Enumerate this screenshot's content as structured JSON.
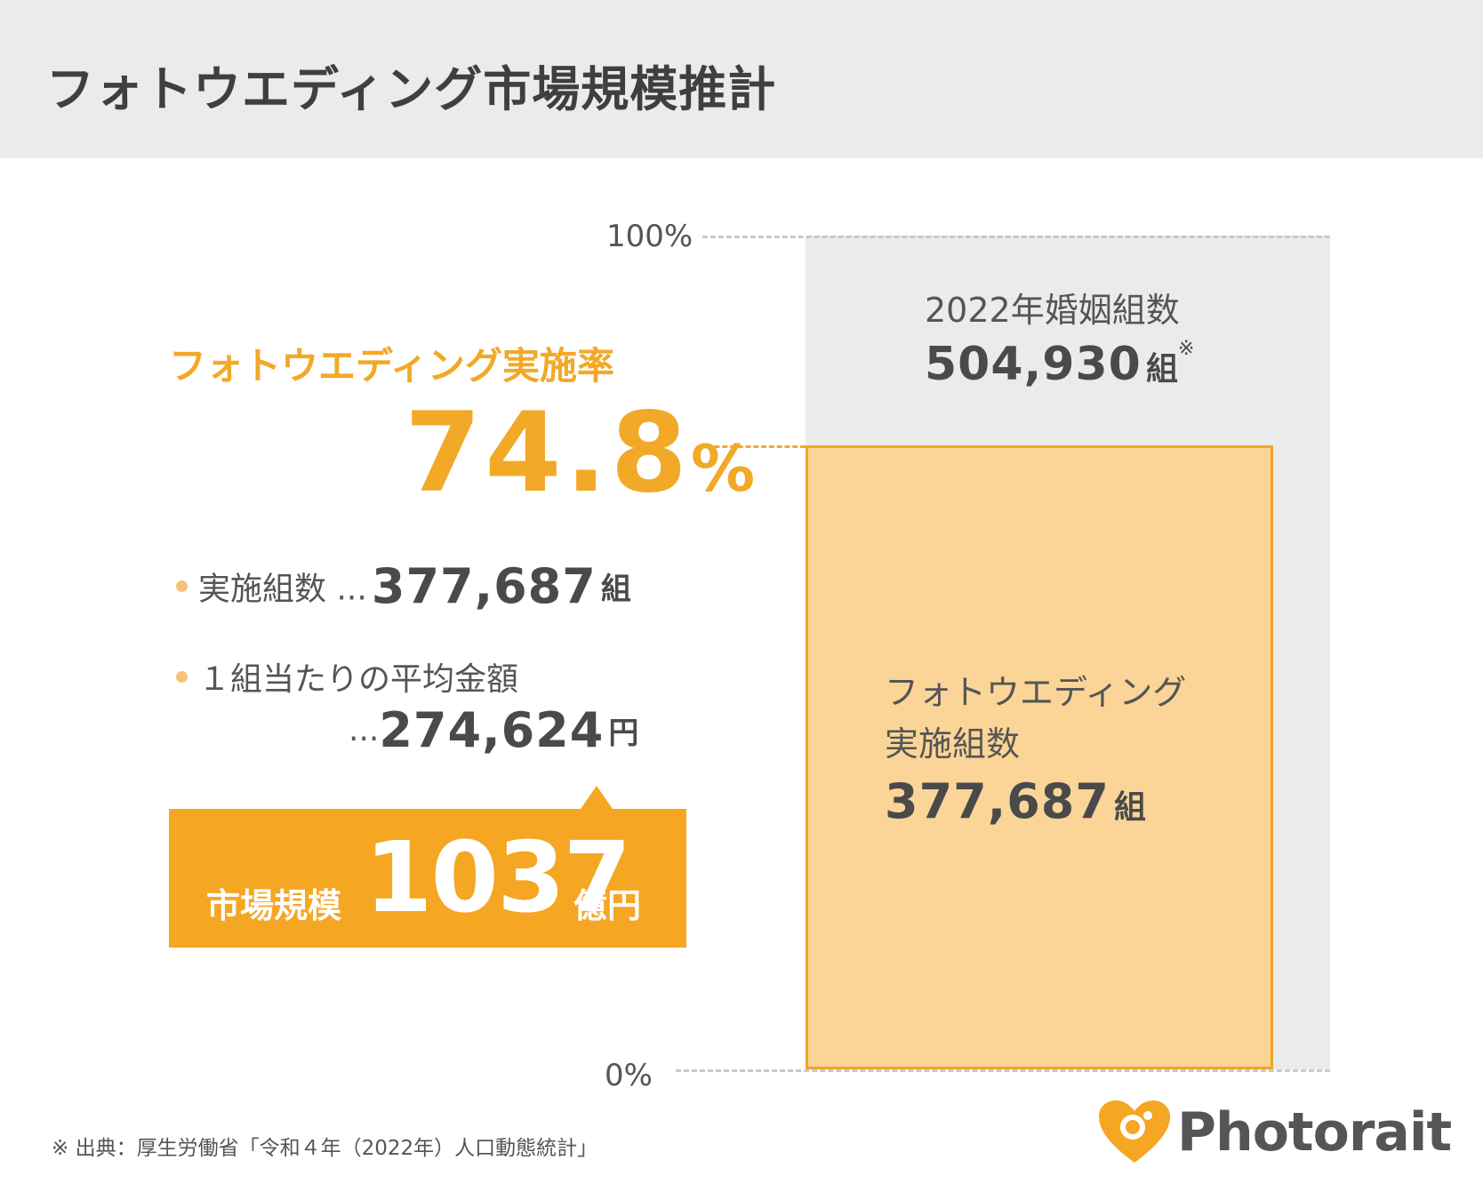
{
  "title": "フォトウエディング市場規模推計",
  "rate": {
    "label": "フォトウエディング実施率",
    "value": "74.8",
    "unit": "%"
  },
  "bullets": {
    "couples_label": "実施組数 ...",
    "couples_value": "377,687",
    "couples_unit": "組",
    "avg_label": "１組当たりの平均金額",
    "avg_prefix": "...",
    "avg_value": "274,624",
    "avg_unit": "円"
  },
  "market": {
    "label": "市場規模",
    "value": "1037",
    "unit": "億円"
  },
  "chart_data": {
    "type": "bar",
    "ylim": [
      0,
      100
    ],
    "y_ticks": [
      "100%",
      "0%"
    ],
    "total": {
      "label": "2022年婚姻組数",
      "value": 504930,
      "display": "504,930",
      "unit": "組",
      "note": "※",
      "percent": 100
    },
    "photo": {
      "label_line1": "フォトウエディング",
      "label_line2": "実施組数",
      "value": 377687,
      "display": "377,687",
      "unit": "組",
      "percent": 74.8
    }
  },
  "footnote": "※ 出典：厚生労働省「令和４年（2022年）人口動態統計」",
  "logo": {
    "name": "Photorait",
    "icon": "heart-camera-icon",
    "color": "#f5a623"
  },
  "colors": {
    "accent": "#f5a623",
    "bar_total": "#ebebeb",
    "bar_photo": "#fad597",
    "text": "#4a4a4a"
  }
}
